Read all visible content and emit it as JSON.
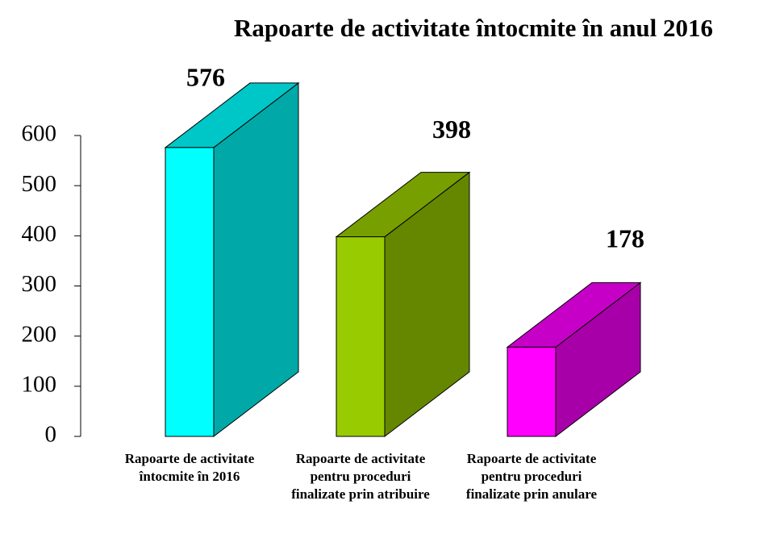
{
  "chart_data": {
    "type": "bar3d",
    "title": "Rapoarte de activitate întocmite în anul 2016",
    "categories": [
      "Rapoarte de activitate întocmite în 2016",
      "Rapoarte de activitate pentru proceduri finalizate prin atribuire",
      "Rapoarte de activitate pentru proceduri finalizate prin anulare"
    ],
    "values": [
      576,
      398,
      178
    ],
    "colors": [
      "#00ffff",
      "#99cc00",
      "#ff00ff"
    ],
    "ylim": [
      0,
      600
    ],
    "yticks": [
      0,
      100,
      200,
      300,
      400,
      500,
      600
    ],
    "grid": false
  }
}
